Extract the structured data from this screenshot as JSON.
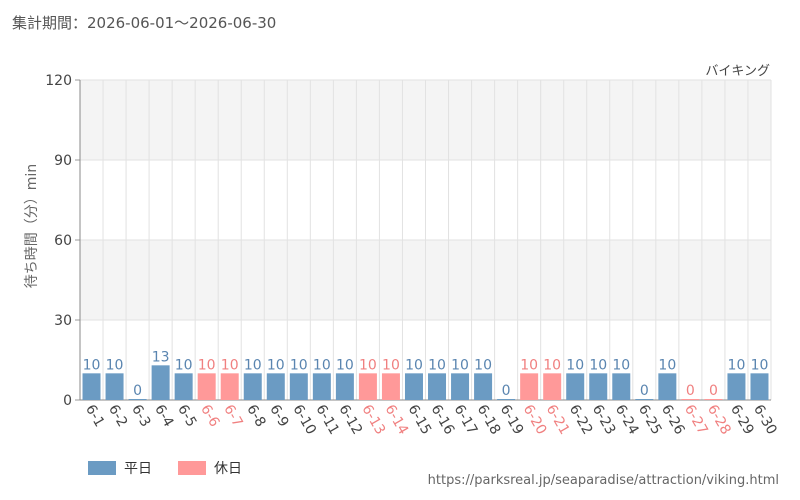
{
  "header": {
    "period": "集計期間：2026-06-01～2026-06-30",
    "attraction": "バイキング"
  },
  "footer": {
    "url": "https://parksreal.jp/seaparadise/attraction/viking.html"
  },
  "colors": {
    "weekday": "#6b9bc3",
    "weekday_label": "#5a85b0",
    "holiday": "#ff9999",
    "holiday_label": "#f08080",
    "band": "#f4f4f4",
    "grid": "#e2e2e2"
  },
  "chart_data": {
    "type": "bar",
    "ylabel": "待ち時間（分）min",
    "ylim": [
      0,
      120
    ],
    "yticks": [
      0,
      30,
      60,
      90,
      120
    ],
    "grid": true,
    "legend_position": "bottom-left",
    "legend": [
      {
        "name": "平日",
        "kind": "weekday"
      },
      {
        "name": "休日",
        "kind": "holiday"
      }
    ],
    "categories": [
      "6-1",
      "6-2",
      "6-3",
      "6-4",
      "6-5",
      "6-6",
      "6-7",
      "6-8",
      "6-9",
      "6-10",
      "6-11",
      "6-12",
      "6-13",
      "6-14",
      "6-15",
      "6-16",
      "6-17",
      "6-18",
      "6-19",
      "6-20",
      "6-21",
      "6-22",
      "6-23",
      "6-24",
      "6-25",
      "6-26",
      "6-27",
      "6-28",
      "6-29",
      "6-30"
    ],
    "values": [
      10,
      10,
      0,
      13,
      10,
      10,
      10,
      10,
      10,
      10,
      10,
      10,
      10,
      10,
      10,
      10,
      10,
      10,
      0,
      10,
      10,
      10,
      10,
      10,
      0,
      10,
      0,
      0,
      10,
      10
    ],
    "holiday": [
      false,
      false,
      false,
      false,
      false,
      true,
      true,
      false,
      false,
      false,
      false,
      false,
      true,
      true,
      false,
      false,
      false,
      false,
      false,
      true,
      true,
      false,
      false,
      false,
      false,
      false,
      true,
      true,
      false,
      false
    ]
  }
}
